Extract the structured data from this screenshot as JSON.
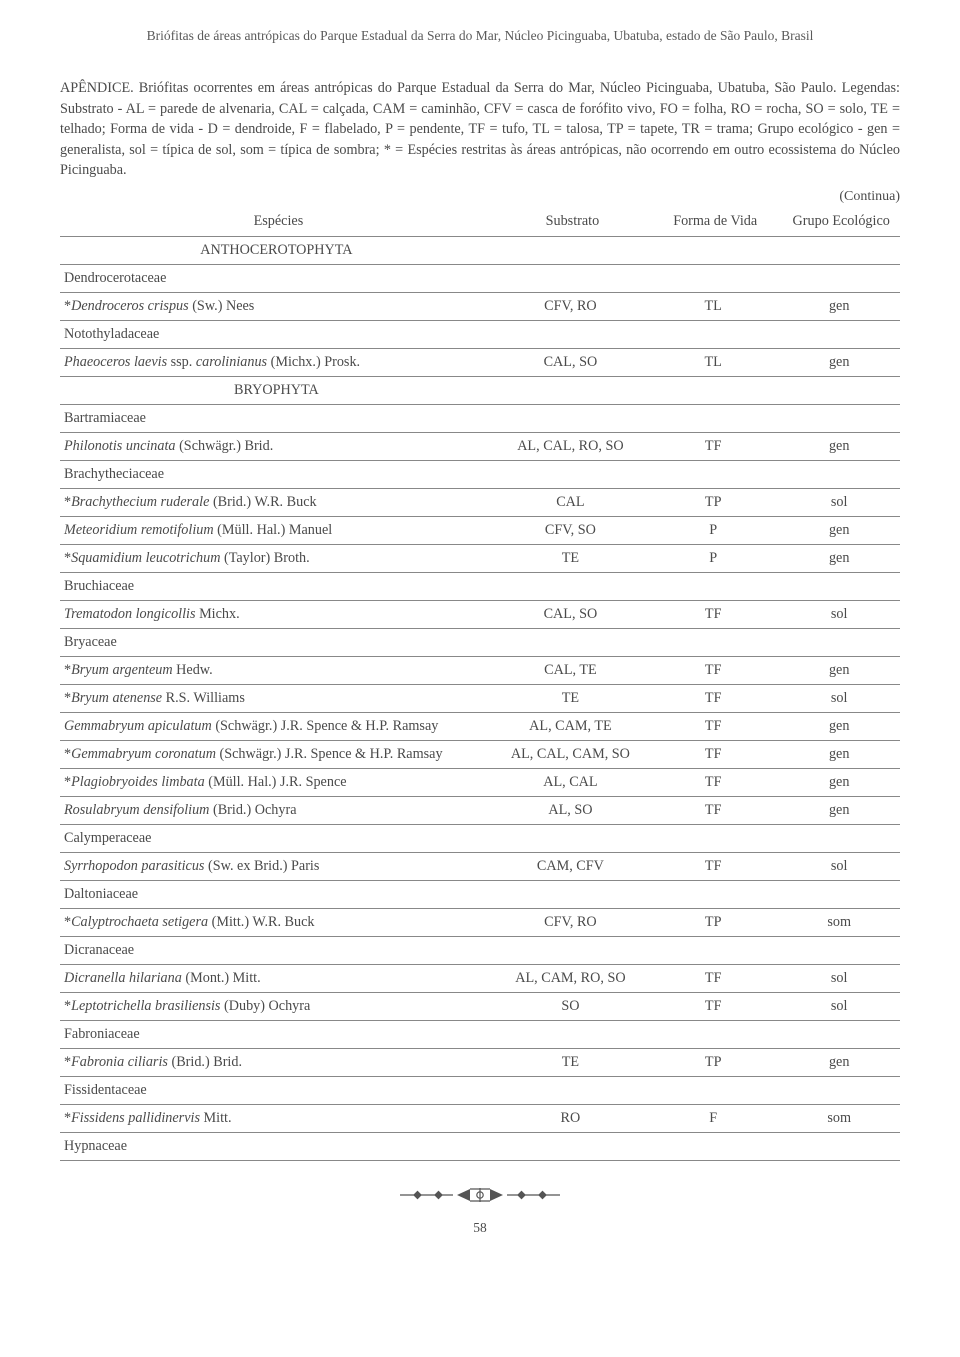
{
  "running_head": "Briófitas de áreas antrópicas do Parque Estadual da Serra do Mar, Núcleo Picinguaba, Ubatuba, estado de São Paulo, Brasil",
  "appendix_title": "APÊNDICE. Briófitas ocorrentes em áreas antrópicas do Parque Estadual da Serra do Mar, Núcleo Picinguaba, Ubatuba, São Paulo. Legendas: Substrato - AL = parede de alvenaria, CAL = calçada, CAM = caminhão, CFV = casca de forófito vivo, FO = folha, RO = rocha, SO = solo, TE = telhado; Forma de vida - D = dendroide, F = flabelado, P = pendente, TF = tufo, TL = talosa, TP = tapete, TR = trama; Grupo ecológico - gen = generalista, sol = típica de sol, som = típica de sombra; * = Espécies restritas às áreas antrópicas, não ocorrendo em outro ecossistema do Núcleo Picinguaba.",
  "continua": "(Continua)",
  "headers": {
    "species": "Espécies",
    "substrato": "Substrato",
    "forma": "Forma de Vida",
    "grupo": "Grupo Ecológico"
  },
  "rows": [
    {
      "type": "division",
      "label": "ANTHOCEROTOPHYTA"
    },
    {
      "type": "family",
      "label": "Dendrocerotaceae"
    },
    {
      "type": "sp",
      "pre": "*",
      "ital": "Dendroceros crispus",
      "post": " (Sw.) Nees",
      "sub": "CFV, RO",
      "forma": "TL",
      "grupo": "gen"
    },
    {
      "type": "family",
      "label": "Notothyladaceae"
    },
    {
      "type": "sp",
      "pre": "",
      "ital": "Phaeoceros laevis",
      "post": " ssp. ",
      "ital2": "carolinianus",
      "post2": " (Michx.) Prosk.",
      "sub": "CAL, SO",
      "forma": "TL",
      "grupo": "gen"
    },
    {
      "type": "division",
      "label": "BRYOPHYTA"
    },
    {
      "type": "family",
      "label": "Bartramiaceae"
    },
    {
      "type": "sp",
      "pre": "",
      "ital": "Philonotis uncinata",
      "post": " (Schwägr.) Brid.",
      "sub": "AL, CAL, RO, SO",
      "forma": "TF",
      "grupo": "gen"
    },
    {
      "type": "family",
      "label": "Brachytheciaceae"
    },
    {
      "type": "sp",
      "pre": "*",
      "ital": "Brachythecium ruderale",
      "post": " (Brid.) W.R. Buck",
      "sub": "CAL",
      "forma": "TP",
      "grupo": "sol"
    },
    {
      "type": "sp",
      "pre": "",
      "ital": "Meteoridium remotifolium",
      "post": " (Müll. Hal.) Manuel",
      "sub": "CFV, SO",
      "forma": "P",
      "grupo": "gen"
    },
    {
      "type": "sp",
      "pre": "*",
      "ital": "Squamidium leucotrichum",
      "post": " (Taylor) Broth.",
      "sub": "TE",
      "forma": "P",
      "grupo": "gen"
    },
    {
      "type": "family",
      "label": "Bruchiaceae"
    },
    {
      "type": "sp",
      "pre": "",
      "ital": "Trematodon longicollis",
      "post": " Michx.",
      "sub": "CAL, SO",
      "forma": "TF",
      "grupo": "sol"
    },
    {
      "type": "family",
      "label": "Bryaceae"
    },
    {
      "type": "sp",
      "pre": "*",
      "ital": "Bryum argenteum",
      "post": " Hedw.",
      "sub": "CAL, TE",
      "forma": "TF",
      "grupo": "gen"
    },
    {
      "type": "sp",
      "pre": "*",
      "ital": "Bryum atenense",
      "post": " R.S. Williams",
      "sub": "TE",
      "forma": "TF",
      "grupo": "sol"
    },
    {
      "type": "sp",
      "pre": "",
      "ital": "Gemmabryum apiculatum",
      "post": " (Schwägr.) J.R. Spence & H.P. Ramsay",
      "sub": "AL, CAM, TE",
      "forma": "TF",
      "grupo": "gen"
    },
    {
      "type": "sp",
      "pre": "*",
      "ital": "Gemmabryum coronatum",
      "post": " (Schwägr.) J.R. Spence & H.P. Ramsay",
      "sub": "AL, CAL, CAM, SO",
      "forma": "TF",
      "grupo": "gen"
    },
    {
      "type": "sp",
      "pre": "*",
      "ital": "Plagiobryoides limbata",
      "post": " (Müll. Hal.) J.R. Spence",
      "sub": "AL, CAL",
      "forma": "TF",
      "grupo": "gen"
    },
    {
      "type": "sp",
      "pre": "",
      "ital": "Rosulabryum densifolium",
      "post": " (Brid.) Ochyra",
      "sub": "AL, SO",
      "forma": "TF",
      "grupo": "gen"
    },
    {
      "type": "family",
      "label": "Calymperaceae"
    },
    {
      "type": "sp",
      "pre": "",
      "ital": "Syrrhopodon parasiticus",
      "post": " (Sw. ex Brid.) Paris",
      "sub": "CAM, CFV",
      "forma": "TF",
      "grupo": "sol"
    },
    {
      "type": "family",
      "label": "Daltoniaceae"
    },
    {
      "type": "sp",
      "pre": "*",
      "ital": "Calyptrochaeta setigera",
      "post": " (Mitt.) W.R. Buck",
      "sub": "CFV, RO",
      "forma": "TP",
      "grupo": "som"
    },
    {
      "type": "family",
      "label": "Dicranaceae"
    },
    {
      "type": "sp",
      "pre": "",
      "ital": "Dicranella hilariana",
      "post": " (Mont.) Mitt.",
      "sub": "AL, CAM, RO, SO",
      "forma": "TF",
      "grupo": "sol"
    },
    {
      "type": "sp",
      "pre": "*",
      "ital": "Leptotrichella brasiliensis",
      "post": " (Duby) Ochyra",
      "sub": "SO",
      "forma": "TF",
      "grupo": "sol"
    },
    {
      "type": "family",
      "label": "Fabroniaceae"
    },
    {
      "type": "sp",
      "pre": "*",
      "ital": "Fabronia ciliaris",
      "post": " (Brid.) Brid.",
      "sub": "TE",
      "forma": "TP",
      "grupo": "gen"
    },
    {
      "type": "family",
      "label": "Fissidentaceae"
    },
    {
      "type": "sp",
      "pre": "*",
      "ital": "Fissidens pallidinervis",
      "post": " Mitt.",
      "sub": "RO",
      "forma": "F",
      "grupo": "som"
    },
    {
      "type": "family",
      "label": "Hypnaceae"
    }
  ],
  "page_number": "58",
  "colors": {
    "text": "#4a4a4a",
    "border": "#888888",
    "background": "#ffffff"
  }
}
